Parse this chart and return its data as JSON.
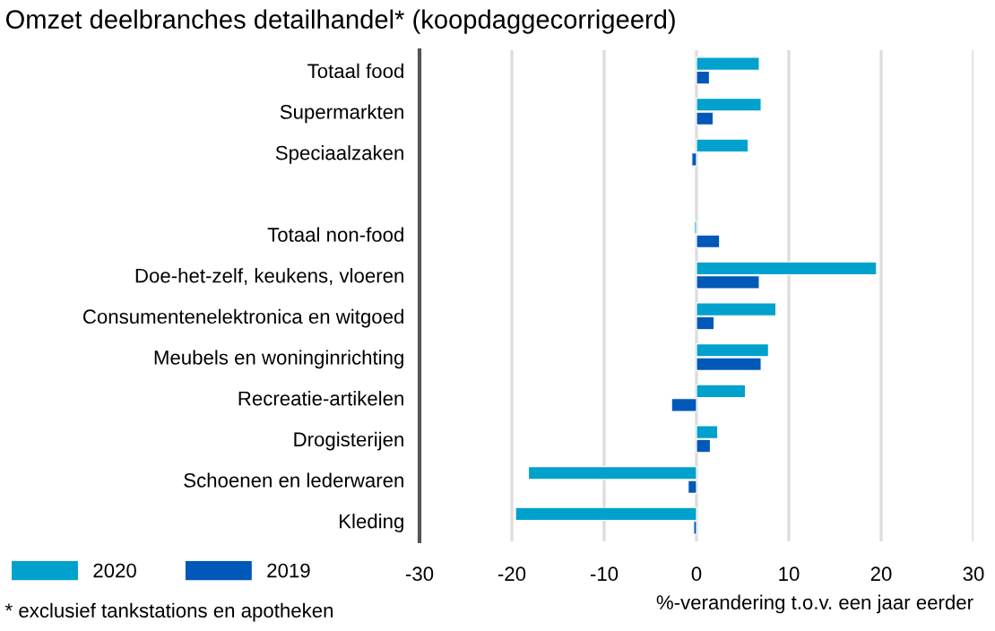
{
  "chart_data": {
    "type": "bar",
    "orientation": "horizontal",
    "title": "Omzet deelbranches detailhandel* (koopdaggecorrigeerd)",
    "xlabel": "%-verandering t.o.v. een jaar eerder",
    "annotations": [
      "* exclusief tankstations en apotheken"
    ],
    "categories": [
      "Totaal food",
      "Supermarkten",
      "Speciaalzaken",
      null,
      "Totaal non-food",
      "Doe-het-zelf, keukens, vloeren",
      "Consumentenelektronica en witgoed",
      "Meubels en woninginrichting",
      "Recreatie-artikelen",
      "Drogisterijen",
      "Schoenen en lederwaren",
      "Kleding"
    ],
    "series": [
      {
        "name": "2020",
        "color": "#00a1cd",
        "values": [
          6.8,
          7.0,
          5.6,
          null,
          -0.2,
          19.5,
          8.6,
          7.8,
          5.3,
          2.3,
          -18.2,
          -19.6
        ]
      },
      {
        "name": "2019",
        "color": "#0058b8",
        "values": [
          1.4,
          1.8,
          -0.5,
          null,
          2.5,
          6.8,
          1.9,
          7.0,
          -2.7,
          1.5,
          -0.9,
          -0.3
        ]
      }
    ],
    "xlim": [
      -30,
      30
    ],
    "xticks": [
      -30,
      -20,
      -10,
      0,
      10,
      20,
      30
    ],
    "grid": "x",
    "legend": "bottom left"
  }
}
